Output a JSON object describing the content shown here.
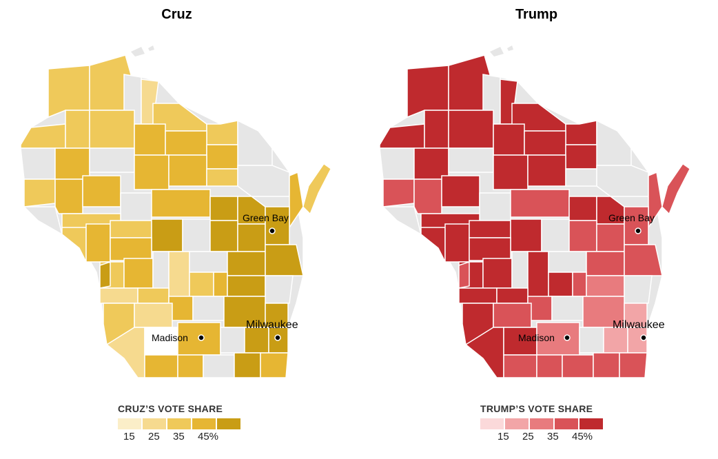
{
  "maps": [
    {
      "id": "cruz",
      "title": "Cruz",
      "legend_title": "CRUZ’S VOTE SHARE",
      "legend_colors": [
        "#fbeec8",
        "#f6da8f",
        "#efc95a",
        "#e6b633",
        "#c99d15"
      ],
      "legend_ticks": [
        "15",
        "25",
        "35",
        "45%"
      ],
      "no_data_color": "#e6e6e6",
      "blank_color": "#ffffff"
    },
    {
      "id": "trump",
      "title": "Trump",
      "legend_title": "TRUMP’S VOTE SHARE",
      "legend_colors": [
        "#fbd9da",
        "#f2a5a7",
        "#e87b7e",
        "#d95358",
        "#bf2a2e"
      ],
      "legend_ticks": [
        "15",
        "25",
        "35",
        "45%"
      ],
      "no_data_color": "#e6e6e6",
      "blank_color": "#ffffff"
    }
  ],
  "cities": [
    "Green Bay",
    "Madison",
    "Milwaukee"
  ]
}
